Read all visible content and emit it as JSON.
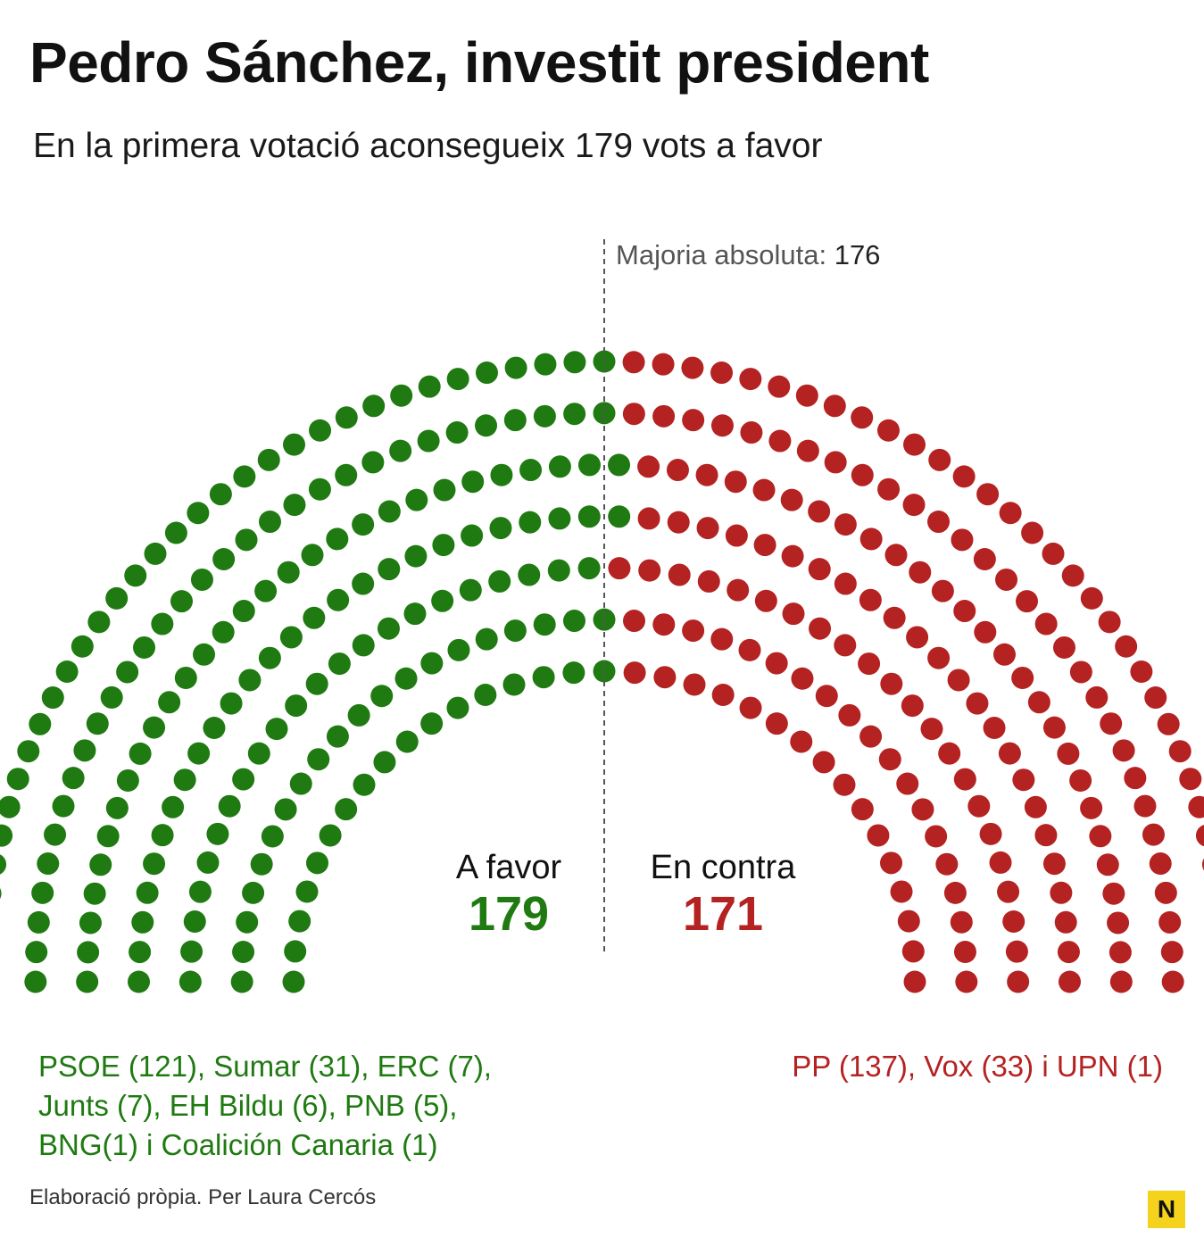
{
  "title": "Pedro Sánchez, investit president",
  "subtitle": "En la primera votació aconsegueix 179 vots a favor",
  "majority": {
    "label": "Majoria absoluta:",
    "value": "176"
  },
  "chart_data": {
    "type": "parliament",
    "total_seats": 350,
    "majority_threshold": 176,
    "rows": 7,
    "series": [
      {
        "name": "A favor",
        "value": 179,
        "color": "#1f7a11",
        "parties": "PSOE (121), Sumar (31), ERC (7), Junts (7), EH Bildu (6), PNB (5), BNG(1) i Coalición Canaria (1)"
      },
      {
        "name": "En contra",
        "value": 171,
        "color": "#b52222",
        "parties": "PP (137), Vox (33) i UPN (1)"
      }
    ]
  },
  "labels": {
    "favor": "A favor",
    "favor_value": "179",
    "contra": "En contra",
    "contra_value": "171"
  },
  "parties": {
    "favor_lines": [
      "PSOE (121), Sumar (31), ERC (7),",
      "Junts (7), EH Bildu (6), PNB (5),",
      "BNG(1) i Coalición Canaria (1)"
    ],
    "contra": "PP (137), Vox (33) i UPN (1)"
  },
  "source": "Elaboració pròpia. Per Laura Cercós",
  "brand_logo": "N"
}
